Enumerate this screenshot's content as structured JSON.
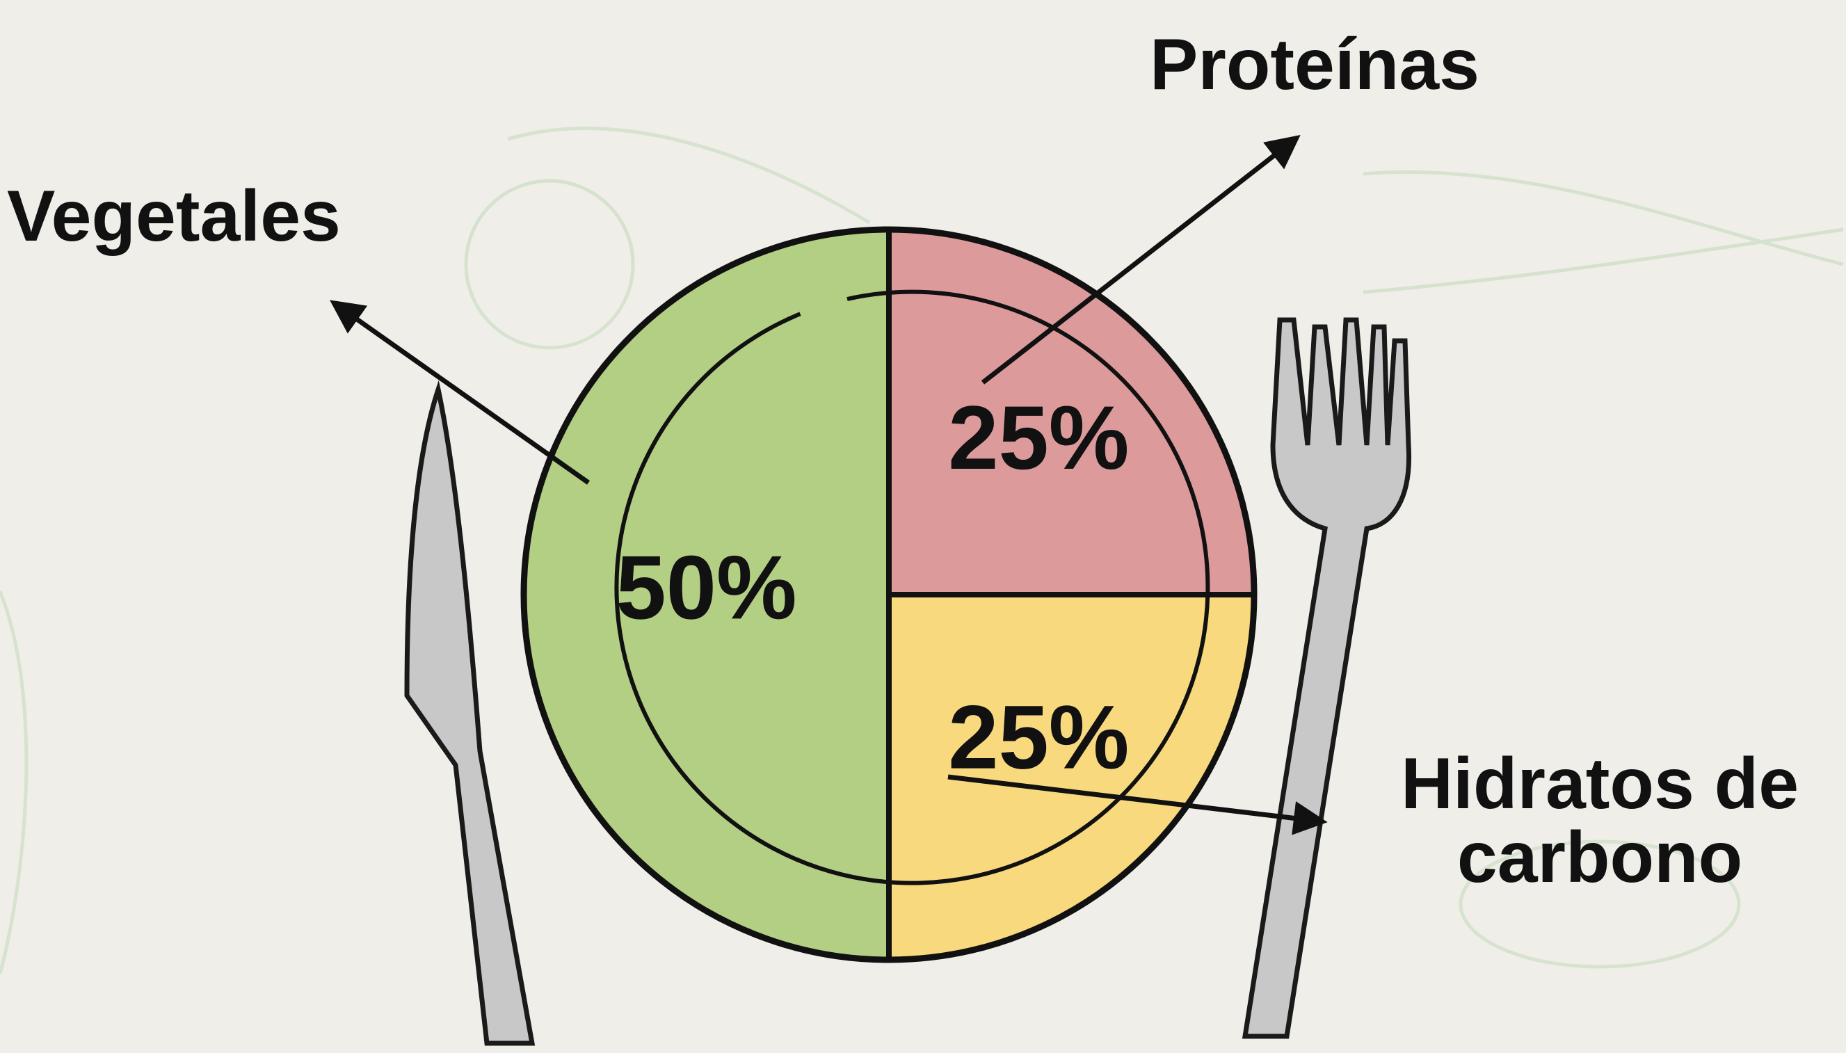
{
  "chart_data": {
    "type": "pie",
    "categories": [
      "Proteínas",
      "Hidratos de carbono",
      "Vegetales"
    ],
    "values": [
      25,
      25,
      50
    ],
    "value_labels": [
      "25%",
      "25%",
      "50%"
    ],
    "colors": [
      "#dc9a9b",
      "#f9d97e",
      "#b2cf84"
    ]
  }
}
